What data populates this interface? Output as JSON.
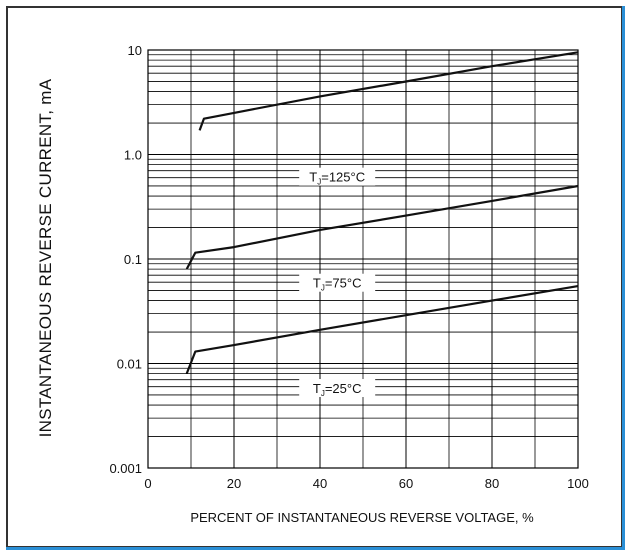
{
  "chart_data": {
    "type": "line",
    "xlabel": "PERCENT OF INSTANTANEOUS REVERSE VOLTAGE, %",
    "ylabel": "INSTANTANEOUS  REVERSE  CURRENT, mA",
    "xlim": [
      0,
      100
    ],
    "ylim": [
      0.001,
      10
    ],
    "yscale": "log",
    "grid": true,
    "x_ticks": [
      "0",
      "20",
      "40",
      "60",
      "80",
      "100"
    ],
    "y_ticks": [
      "0.001",
      "0.01",
      "0.1",
      "1.0",
      "10"
    ],
    "series": [
      {
        "name": "TJ=125°C",
        "label_main": "T",
        "label_sub": "J",
        "label_rest": "=125°C",
        "x": [
          12,
          13,
          20,
          40,
          60,
          80,
          100
        ],
        "y": [
          1.7,
          2.2,
          2.5,
          3.6,
          5.0,
          7.0,
          9.5
        ]
      },
      {
        "name": "TJ=75°C",
        "label_main": "T",
        "label_sub": "J",
        "label_rest": "=75°C",
        "x": [
          9,
          11,
          20,
          40,
          60,
          80,
          100
        ],
        "y": [
          0.08,
          0.115,
          0.13,
          0.19,
          0.26,
          0.36,
          0.5
        ]
      },
      {
        "name": "TJ=25°C",
        "label_main": "T",
        "label_sub": "J",
        "label_rest": "=25°C",
        "x": [
          9,
          11,
          20,
          40,
          60,
          80,
          100
        ],
        "y": [
          0.008,
          0.013,
          0.015,
          0.021,
          0.029,
          0.04,
          0.055
        ]
      }
    ],
    "line_color": "#111111",
    "grid_color": "#000000"
  }
}
